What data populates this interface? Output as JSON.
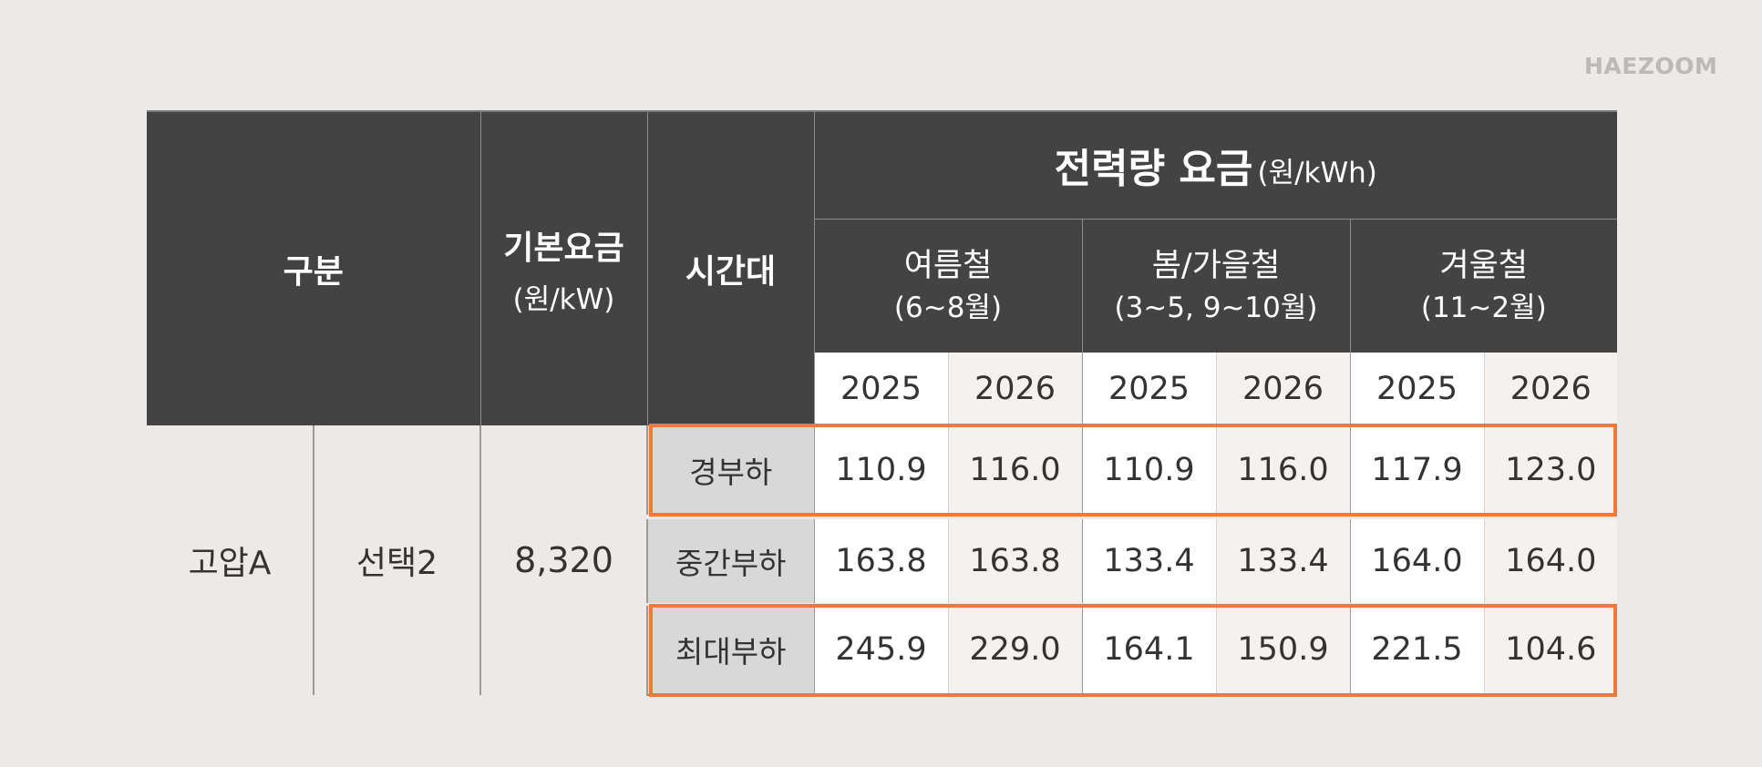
{
  "brand": "HAEZOOM",
  "header": {
    "category": "구분",
    "base_fee_label": "기본요금",
    "base_fee_unit": "(원/kW)",
    "time_band": "시간대",
    "energy_fee_title": "전력량 요금",
    "energy_fee_unit": "(원/kWh)",
    "seasons": [
      {
        "name": "여름철",
        "period": "(6~8월)"
      },
      {
        "name": "봄/가을철",
        "period": "(3~5, 9~10월)"
      },
      {
        "name": "겨울철",
        "period": "(11~2월)"
      }
    ],
    "years": [
      "2025",
      "2026",
      "2025",
      "2026",
      "2025",
      "2026"
    ]
  },
  "row_group": {
    "voltage": "고압A",
    "option": "선택2",
    "base_fee": "8,320"
  },
  "rows": [
    {
      "band": "경부하",
      "values": [
        "110.9",
        "116.0",
        "110.9",
        "116.0",
        "117.9",
        "123.0"
      ],
      "highlighted": true
    },
    {
      "band": "중간부하",
      "values": [
        "163.8",
        "163.8",
        "133.4",
        "133.4",
        "164.0",
        "164.0"
      ],
      "highlighted": false
    },
    {
      "band": "최대부하",
      "values": [
        "245.9",
        "229.0",
        "164.1",
        "150.9",
        "221.5",
        "104.6"
      ],
      "highlighted": true
    }
  ],
  "colors": {
    "background": "#ede9e6",
    "header": "#434343",
    "highlight": "#f07838",
    "time_band_cell": "#d8d8d8"
  }
}
